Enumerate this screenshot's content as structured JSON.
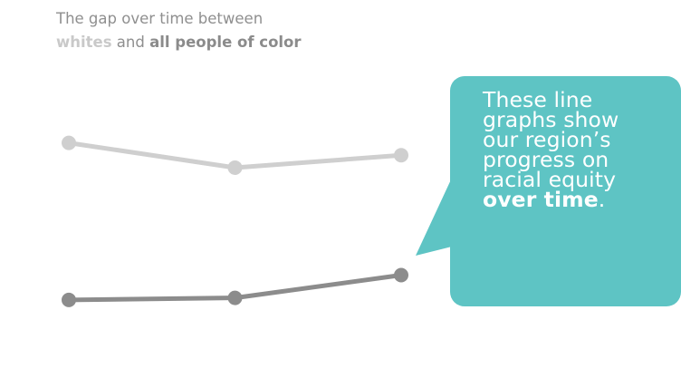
{
  "title": {
    "line1": "The gap over time between",
    "whites": "whites",
    "and": " and ",
    "people": "all people of color"
  },
  "callout": {
    "lines": [
      "These line",
      "graphs show",
      "our region’s",
      "progress on",
      "racial equity"
    ],
    "emphasis": "over time",
    "period": "."
  },
  "colors": {
    "whites_series": "#cfcfcf",
    "people_of_color_series": "#8c8c8c",
    "callout_background": "#5ec4c4",
    "callout_text": "#ffffff"
  },
  "chart_data": {
    "type": "line",
    "x": [
      1,
      2,
      3
    ],
    "ylim": [
      0,
      1
    ],
    "grid": false,
    "series": [
      {
        "name": "whites",
        "values": [
          0.8,
          0.68,
          0.74
        ]
      },
      {
        "name": "all people of color",
        "values": [
          0.04,
          0.05,
          0.16
        ]
      }
    ]
  }
}
